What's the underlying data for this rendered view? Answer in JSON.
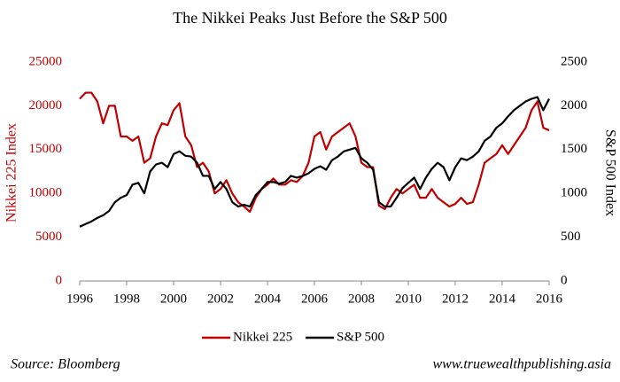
{
  "chart_data": {
    "type": "line",
    "title": "The Nikkei Peaks Just Before the S&P 500",
    "y_label": "Nikkei 225 Index",
    "y2_label": "S&P 500 Index",
    "source": "Source: Bloomberg",
    "website": "www.truewealthpublishing.asia",
    "xlim": [
      1996,
      2016
    ],
    "xticks": [
      1996,
      1998,
      2000,
      2002,
      2004,
      2006,
      2008,
      2010,
      2012,
      2014,
      2016
    ],
    "ylim": [
      0,
      25000
    ],
    "yticks": [
      0,
      5000,
      10000,
      15000,
      20000,
      25000
    ],
    "y2lim": [
      0,
      2500
    ],
    "y2ticks": [
      0,
      500,
      1000,
      1500,
      2000,
      2500
    ],
    "y_color": "#c00000",
    "y2_color": "#000000",
    "x": [
      1996,
      1996.25,
      1996.5,
      1996.75,
      1997,
      1997.25,
      1997.5,
      1997.75,
      1998,
      1998.25,
      1998.5,
      1998.75,
      1999,
      1999.25,
      1999.5,
      1999.75,
      2000,
      2000.25,
      2000.5,
      2000.75,
      2001,
      2001.25,
      2001.5,
      2001.75,
      2002,
      2002.25,
      2002.5,
      2002.75,
      2003,
      2003.25,
      2003.5,
      2003.75,
      2004,
      2004.25,
      2004.5,
      2004.75,
      2005,
      2005.25,
      2005.5,
      2005.75,
      2006,
      2006.25,
      2006.5,
      2006.75,
      2007,
      2007.25,
      2007.5,
      2007.75,
      2008,
      2008.25,
      2008.5,
      2008.75,
      2009,
      2009.25,
      2009.5,
      2009.75,
      2010,
      2010.25,
      2010.5,
      2010.75,
      2011,
      2011.25,
      2011.5,
      2011.75,
      2012,
      2012.25,
      2012.5,
      2012.75,
      2013,
      2013.25,
      2013.5,
      2013.75,
      2014,
      2014.25,
      2014.5,
      2014.75,
      2015,
      2015.25,
      2015.5,
      2015.75,
      2016
    ],
    "series": [
      {
        "name": "Nikkei 225",
        "color": "#c00000",
        "values": [
          20800,
          21500,
          21500,
          20500,
          18000,
          20000,
          20000,
          16500,
          16500,
          16000,
          16500,
          13500,
          14000,
          16500,
          18000,
          17800,
          19500,
          20300,
          16500,
          15500,
          13000,
          13500,
          12500,
          10000,
          10500,
          11500,
          10000,
          9000,
          8500,
          7900,
          9500,
          10500,
          11000,
          11700,
          11000,
          11000,
          11500,
          11300,
          12000,
          13500,
          16500,
          17000,
          15000,
          16500,
          17000,
          17500,
          18000,
          16500,
          13500,
          13000,
          13000,
          8600,
          8200,
          9500,
          10500,
          10000,
          10500,
          11000,
          9500,
          9500,
          10500,
          9500,
          9000,
          8500,
          8800,
          9500,
          8800,
          9000,
          11000,
          13500,
          14000,
          14500,
          15500,
          14500,
          15500,
          16500,
          17500,
          19500,
          20500,
          17500,
          17200
        ]
      },
      {
        "name": "S&P 500",
        "color": "#000000",
        "axis": "y2",
        "values": [
          620,
          650,
          680,
          720,
          750,
          800,
          900,
          950,
          980,
          1100,
          1120,
          1000,
          1250,
          1330,
          1350,
          1300,
          1450,
          1480,
          1430,
          1420,
          1350,
          1200,
          1200,
          1050,
          1130,
          1050,
          900,
          850,
          870,
          850,
          980,
          1050,
          1130,
          1130,
          1110,
          1130,
          1200,
          1180,
          1200,
          1230,
          1280,
          1310,
          1270,
          1380,
          1420,
          1480,
          1500,
          1520,
          1400,
          1350,
          1270,
          900,
          850,
          850,
          950,
          1060,
          1120,
          1180,
          1050,
          1180,
          1280,
          1350,
          1300,
          1150,
          1300,
          1400,
          1380,
          1420,
          1480,
          1600,
          1650,
          1750,
          1800,
          1880,
          1950,
          2000,
          2050,
          2080,
          2100,
          1950,
          2080
        ]
      }
    ]
  }
}
